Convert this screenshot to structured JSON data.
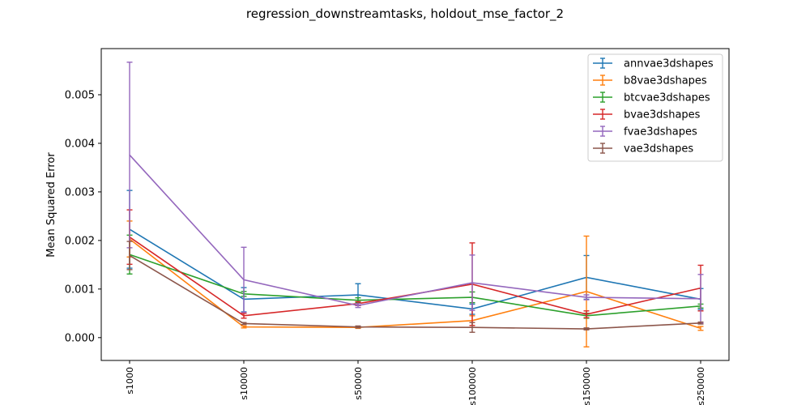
{
  "chart_data": {
    "type": "line",
    "title": "regression_downstreamtasks, holdout_mse_factor_2",
    "xlabel": "",
    "ylabel": "Mean Squared Error",
    "categories": [
      "s1000",
      "s10000",
      "s50000",
      "s100000",
      "s150000",
      "s250000"
    ],
    "ylim": [
      -0.00047,
      0.00595
    ],
    "yticks": [
      0.0,
      0.001,
      0.002,
      0.003,
      0.004,
      0.005
    ],
    "ytick_labels": [
      "0.000",
      "0.001",
      "0.002",
      "0.003",
      "0.004",
      "0.005"
    ],
    "grid": false,
    "legend_position": "top-right",
    "series": [
      {
        "name": "annvae3dshapes",
        "color": "#1f77b4",
        "values": [
          0.00223,
          0.00079,
          0.00088,
          0.00059,
          0.00124,
          0.00079
        ],
        "err_low": [
          0.00143,
          0.00053,
          0.00066,
          0.00048,
          0.00079,
          0.00058
        ],
        "err_high": [
          0.00303,
          0.00103,
          0.00111,
          0.00069,
          0.00169,
          0.00101
        ]
      },
      {
        "name": "b8vae3dshapes",
        "color": "#ff7f0e",
        "values": [
          0.00203,
          0.00022,
          0.00021,
          0.00035,
          0.00095,
          0.00019
        ],
        "err_low": [
          0.00166,
          0.0002,
          0.00019,
          0.00025,
          -0.00019,
          0.00015
        ],
        "err_high": [
          0.0024,
          0.00024,
          0.00023,
          0.00045,
          0.00209,
          0.00023
        ]
      },
      {
        "name": "btcvae3dshapes",
        "color": "#2ca02c",
        "values": [
          0.00171,
          0.0009,
          0.00077,
          0.00083,
          0.00045,
          0.00065
        ],
        "err_low": [
          0.00131,
          0.00085,
          0.00072,
          0.00072,
          0.0004,
          0.00061
        ],
        "err_high": [
          0.00211,
          0.00095,
          0.00082,
          0.00094,
          0.0005,
          0.00069
        ]
      },
      {
        "name": "bvae3dshapes",
        "color": "#d62728",
        "values": [
          0.00207,
          0.00045,
          0.0007,
          0.0011,
          0.00048,
          0.00102
        ],
        "err_low": [
          0.00151,
          0.0004,
          0.00066,
          0.00025,
          0.00041,
          0.00055
        ],
        "err_high": [
          0.00263,
          0.0005,
          0.00074,
          0.00195,
          0.00055,
          0.00149
        ]
      },
      {
        "name": "fvae3dshapes",
        "color": "#9467bd",
        "values": [
          0.00376,
          0.00119,
          0.00066,
          0.00113,
          0.00083,
          0.0008
        ],
        "err_low": [
          0.00185,
          0.00052,
          0.00062,
          0.00056,
          0.00078,
          0.0003
        ],
        "err_high": [
          0.00567,
          0.00186,
          0.0007,
          0.0017,
          0.00088,
          0.0013
        ]
      },
      {
        "name": "vae3dshapes",
        "color": "#8c564b",
        "values": [
          0.00169,
          0.00029,
          0.00022,
          0.00021,
          0.00018,
          0.0003
        ],
        "err_low": [
          0.0014,
          0.00027,
          0.0002,
          0.00011,
          0.00016,
          0.00028
        ],
        "err_high": [
          0.00198,
          0.00031,
          0.00024,
          0.00031,
          0.0002,
          0.00032
        ]
      }
    ]
  }
}
